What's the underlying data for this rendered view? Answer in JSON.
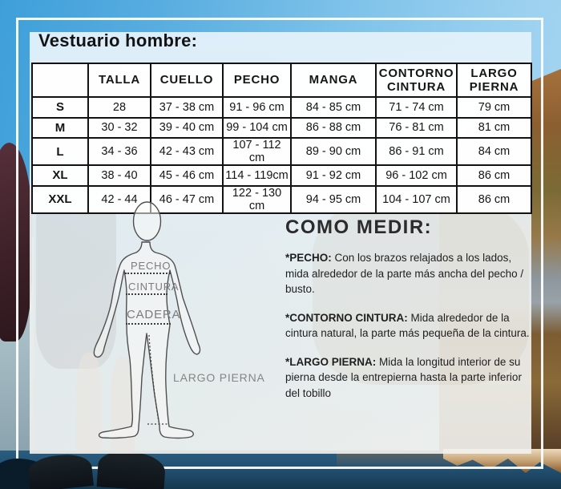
{
  "page": {
    "title": "Vestuario hombre:"
  },
  "size_table": {
    "columns": [
      "",
      "TALLA",
      "CUELLO",
      "PECHO",
      "MANGA",
      "CONTORNO CINTURA",
      "LARGO PIERNA"
    ],
    "rows": [
      [
        "S",
        "28",
        "37 - 38 cm",
        "91 - 96 cm",
        "84 - 85 cm",
        "71 - 74 cm",
        "79 cm"
      ],
      [
        "M",
        "30 - 32",
        "39 - 40 cm",
        "99 - 104 cm",
        "86 - 88 cm",
        "76 - 81 cm",
        "81 cm"
      ],
      [
        "L",
        "34 - 36",
        "42 - 43 cm",
        "107 - 112 cm",
        "89 - 90 cm",
        "86 - 91 cm",
        "84 cm"
      ],
      [
        "XL",
        "38 - 40",
        "45 - 46 cm",
        "114 - 119cm",
        "91 - 92 cm",
        "96 - 102 cm",
        "86 cm"
      ],
      [
        "XXL",
        "42 - 44",
        "46 - 47 cm",
        "122 - 130 cm",
        "94 - 95 cm",
        "104 - 107 cm",
        "86 cm"
      ]
    ]
  },
  "figure_labels": {
    "pecho": "PECHO",
    "cintura": "CINTURA",
    "cadera": "CADERA",
    "largo_pierna": "LARGO PIERNA"
  },
  "how_to_measure": {
    "heading": "COMO MEDIR:",
    "items": [
      {
        "term": "*PECHO:",
        "text": "Con los brazos relajados a los lados, mida alrededor de la parte más ancha del pecho / busto."
      },
      {
        "term": "*CONTORNO CINTURA:",
        "text": "Mida alrededor de la cintura natural, la parte más pequeña de la cintura."
      },
      {
        "term": "*LARGO PIERNA:",
        "text": "Mida la longitud interior de su pierna desde la entrepierna hasta la parte inferior del tobillo"
      }
    ]
  },
  "colors": {
    "sky_blue": "#58ade0",
    "panel_tint": "#e9f1f7",
    "table_border": "#121212",
    "figure_label_gray": "#7c7c7c",
    "water_blue": "#204d6e",
    "mountain_rust": "#8c5f31",
    "frame_white": "#fcfdfe"
  }
}
